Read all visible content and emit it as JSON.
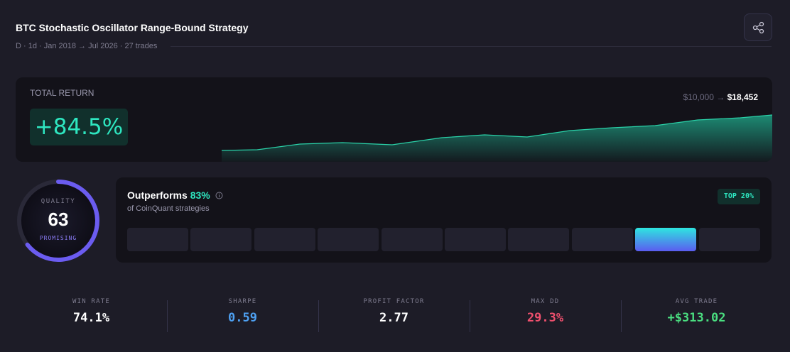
{
  "header": {
    "title": "BTC Stochastic Oscillator Range-Bound Strategy",
    "subtitle": "D · 1d · Jan 2018 → Jul 2026 · 27 trades"
  },
  "total_return": {
    "label": "TOTAL RETURN",
    "value": "+84.5%",
    "start": "$10,000",
    "arrow": "→",
    "end": "$18,452"
  },
  "quality": {
    "label": "QUALITY",
    "score": 63,
    "rating": "PROMISING"
  },
  "percentile": {
    "title": "Outperforms",
    "value": "83%",
    "caption": "of CoinQuant strategies",
    "badge": "TOP 20%"
  },
  "stats": [
    {
      "label": "WIN RATE",
      "value": "74.1%"
    },
    {
      "label": "SHARPE",
      "value": "0.59"
    },
    {
      "label": "PROFIT FACTOR",
      "value": "2.77"
    },
    {
      "label": "MAX DD",
      "value": "29.3%"
    },
    {
      "label": "AVG TRADE",
      "value": "+$313.02"
    }
  ]
}
